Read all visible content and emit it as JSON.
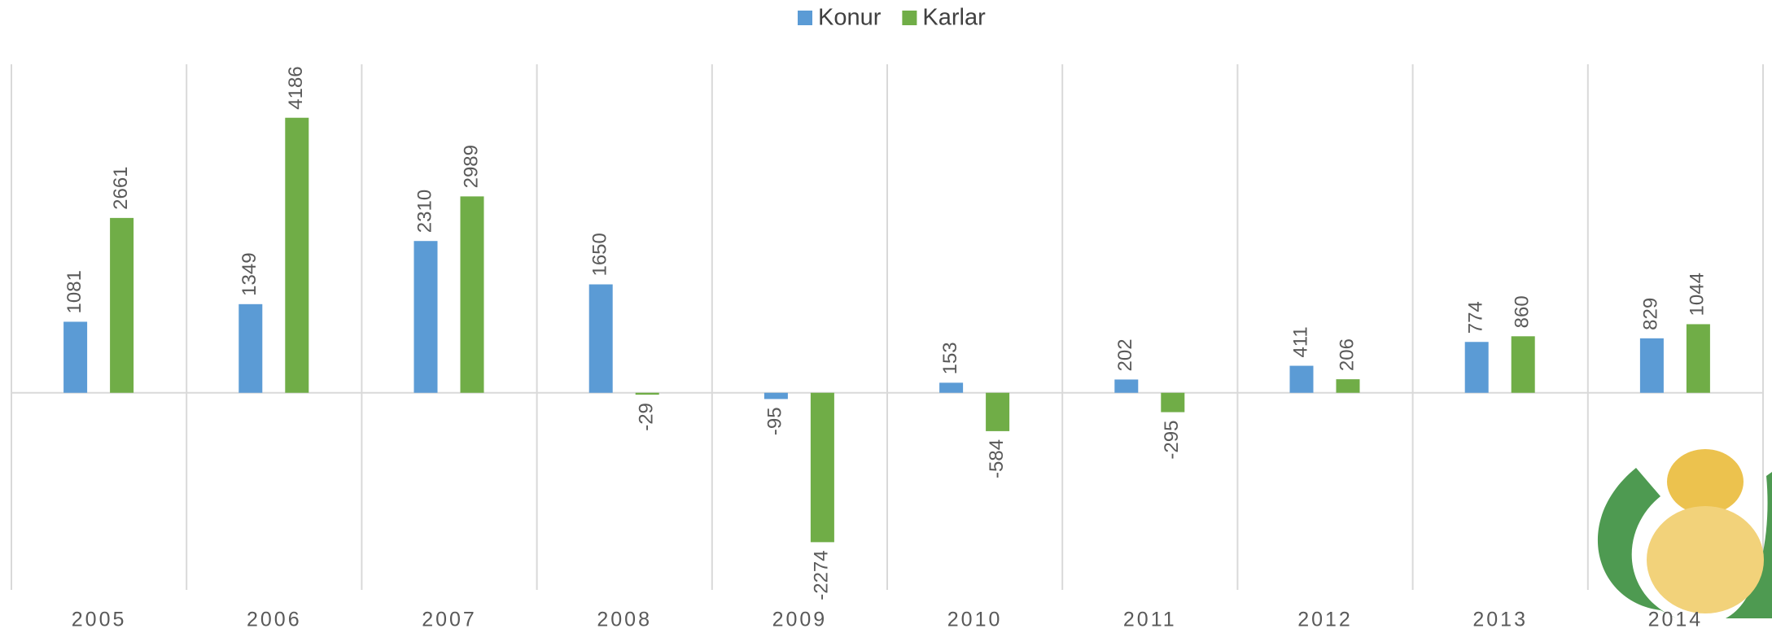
{
  "chart_data": {
    "type": "bar",
    "categories": [
      "2005",
      "2006",
      "2007",
      "2008",
      "2009",
      "2010",
      "2011",
      "2012",
      "2013",
      "2014"
    ],
    "series": [
      {
        "name": "Konur",
        "color": "#5b9bd5",
        "values": [
          1081,
          1349,
          2310,
          1650,
          -95,
          153,
          202,
          411,
          774,
          829
        ]
      },
      {
        "name": "Karlar",
        "color": "#70ad47",
        "values": [
          2661,
          4186,
          2989,
          -29,
          -2274,
          -584,
          -295,
          206,
          860,
          1044
        ]
      }
    ],
    "ylim": [
      -3000,
      5000
    ],
    "legend": "top"
  }
}
